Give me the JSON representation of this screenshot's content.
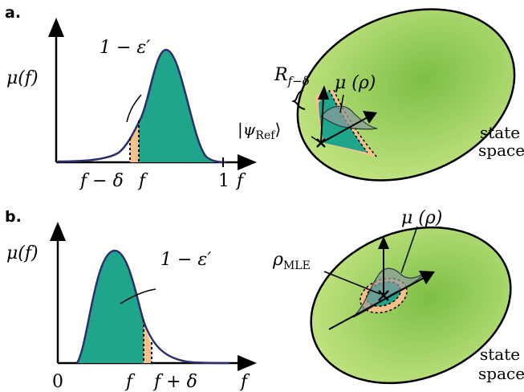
{
  "panel_a": {
    "label": "a.",
    "y_axis_label": "μ(f)",
    "area_label": "1 − ε′",
    "tick_f_minus_delta": "f − δ",
    "tick_f": "f",
    "tick_one": "1",
    "axis_f": "f",
    "radius_label": "R",
    "radius_subscript": "f−δ",
    "mu_rho_label": "μ (ρ)",
    "psi_ref_label": "|ψ",
    "psi_ref_subscript": "Ref",
    "psi_ref_close": "⟩",
    "state_space_line1": "state",
    "state_space_line2": "space"
  },
  "panel_b": {
    "label": "b.",
    "y_axis_label": "μ(f)",
    "area_label": "1 − ε′",
    "tick_zero": "0",
    "tick_f": "f",
    "tick_f_plus_delta": "f + δ",
    "axis_f": "f",
    "mu_rho_label": "μ (ρ)",
    "rho_mle_label": "ρ",
    "rho_mle_subscript": "MLE",
    "state_space_line1": "state",
    "state_space_line2": "space"
  },
  "colors": {
    "teal_fill": "#1fa58c",
    "orange_fill": "#f7c08a",
    "curve_stroke": "#2b2f6b",
    "ellipse_light": "#b9de7a",
    "ellipse_dark": "#7fc04a"
  }
}
